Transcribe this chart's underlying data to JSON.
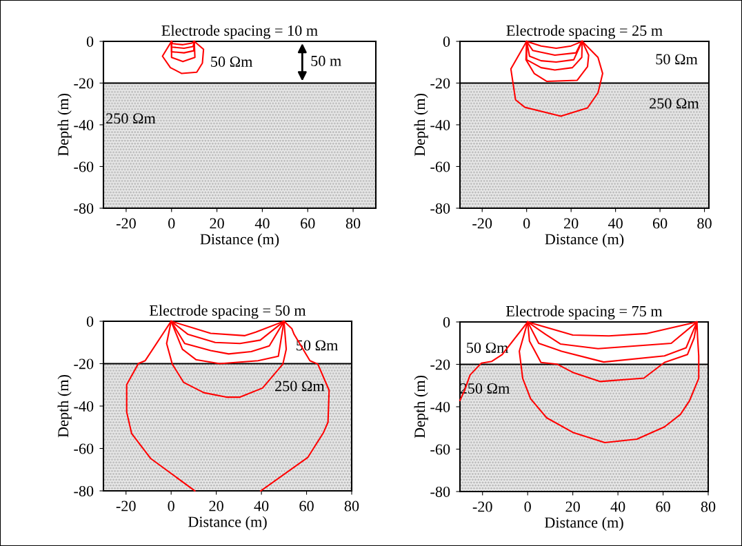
{
  "chart_data": [
    {
      "type": "line",
      "title": "Electrode spacing = 10 m",
      "xlabel": "Distance (m)",
      "ylabel": "Depth (m)",
      "xlim": [
        -30,
        90
      ],
      "ylim": [
        -80,
        0
      ],
      "xticks": [
        -20,
        0,
        20,
        40,
        60,
        80
      ],
      "yticks": [
        -80,
        -60,
        -40,
        -20,
        0
      ],
      "bands": [
        {
          "axis": "y",
          "from": -20,
          "to": -80,
          "color": "#bdbdbd"
        }
      ],
      "annotations": [
        "50 Ωm",
        "250 Ωm",
        "50 m"
      ],
      "series": [
        {
          "color": "#ff0000",
          "x": [
            0,
            0.5,
            5,
            9,
            10
          ],
          "values": [
            0,
            -1.1,
            -1.6,
            -0.8,
            0
          ]
        },
        {
          "color": "#ff0000",
          "x": [
            0,
            0,
            5.5,
            9.5,
            10
          ],
          "values": [
            0,
            -2.7,
            -3.3,
            -2.5,
            0
          ]
        },
        {
          "color": "#ff0000",
          "x": [
            0,
            0,
            5.5,
            9.8,
            10
          ],
          "values": [
            0,
            -5,
            -5.5,
            -4.5,
            0
          ]
        },
        {
          "color": "#ff0000",
          "x": [
            0,
            0,
            5,
            10.3,
            10
          ],
          "values": [
            0,
            -7.7,
            -9.7,
            -7.7,
            0
          ]
        },
        {
          "color": "#ff0000",
          "x": [
            0,
            -4,
            -0.5,
            4.5,
            11.1,
            13.6,
            14.1,
            10
          ],
          "values": [
            0,
            -7.1,
            -12.6,
            -15.4,
            -14.8,
            -10.4,
            -3.8,
            0
          ]
        }
      ]
    },
    {
      "type": "line",
      "title": "Electrode spacing = 25 m",
      "xlabel": "Distance (m)",
      "ylabel": "Depth (m)",
      "xlim": [
        -30,
        82
      ],
      "ylim": [
        -80,
        0
      ],
      "xticks": [
        -20,
        0,
        20,
        40,
        60,
        80
      ],
      "yticks": [
        -80,
        -60,
        -40,
        -20,
        0
      ],
      "bands": [
        {
          "axis": "y",
          "from": -20,
          "to": -80,
          "color": "#bdbdbd"
        }
      ],
      "annotations": [
        "50 Ωm",
        "250 Ωm"
      ],
      "series": [
        {
          "color": "#ff0000",
          "x": [
            0,
            6.5,
            13.3,
            20,
            25
          ],
          "values": [
            0,
            -2.2,
            -3.3,
            -2.2,
            0
          ]
        },
        {
          "color": "#ff0000",
          "x": [
            0,
            2.8,
            12.7,
            22.2,
            24.8
          ],
          "values": [
            0,
            -4.4,
            -6.6,
            -5.5,
            0
          ]
        },
        {
          "color": "#ff0000",
          "x": [
            0,
            1.3,
            6.5,
            13.3,
            21.2,
            25
          ],
          "values": [
            0,
            -7.1,
            -9.3,
            -9.9,
            -8.8,
            0
          ]
        },
        {
          "color": "#ff0000",
          "x": [
            0,
            0,
            6.5,
            12.7,
            20.6,
            24.8,
            25
          ],
          "values": [
            0,
            -8.8,
            -12.6,
            -13.7,
            -12.6,
            -7.7,
            0
          ]
        },
        {
          "color": "#ff0000",
          "x": [
            0,
            -0.3,
            3.4,
            9.1,
            22.7,
            27.4,
            27.9,
            25
          ],
          "values": [
            0,
            -8.8,
            -15.4,
            -19.2,
            -18.7,
            -12.1,
            -6.6,
            0
          ]
        },
        {
          "color": "#ff0000",
          "x": [
            0,
            -7.1,
            -5,
            -0.8,
            15.4,
            27.4,
            32.1,
            34.2,
            32.1,
            25
          ],
          "values": [
            0,
            -13.2,
            -28,
            -31.6,
            -35.9,
            -31.9,
            -24.7,
            -15.4,
            -7.7,
            0
          ]
        }
      ]
    },
    {
      "type": "line",
      "title": "Electrode spacing = 50 m",
      "xlabel": "Distance (m)",
      "ylabel": "Depth (m)",
      "xlim": [
        -30,
        80
      ],
      "ylim": [
        -80,
        0
      ],
      "xticks": [
        -20,
        0,
        20,
        40,
        60,
        80
      ],
      "yticks": [
        -80,
        -60,
        -40,
        -20,
        0
      ],
      "bands": [
        {
          "axis": "y",
          "from": -20,
          "to": -80,
          "color": "#bdbdbd"
        }
      ],
      "annotations": [
        "50 Ωm",
        "250 Ωm"
      ],
      "series": [
        {
          "color": "#ff0000",
          "x": [
            0,
            17.5,
            32.5,
            37.5,
            50
          ],
          "values": [
            0,
            -5.7,
            -6.8,
            -5.1,
            0
          ]
        },
        {
          "color": "#ff0000",
          "x": [
            0,
            7.5,
            19.5,
            30.5,
            39.5,
            50
          ],
          "values": [
            0,
            -6.2,
            -10,
            -10.5,
            -8.9,
            0
          ]
        },
        {
          "color": "#ff0000",
          "x": [
            0,
            6,
            17.5,
            25.5,
            35.5,
            43.5,
            50
          ],
          "values": [
            0,
            -10.5,
            -13.8,
            -15.4,
            -14.3,
            -11.6,
            0
          ]
        },
        {
          "color": "#ff0000",
          "x": [
            0,
            5,
            11,
            21.5,
            38.5,
            47.5,
            50
          ],
          "values": [
            0,
            -13.2,
            -18.1,
            -20,
            -18.6,
            -16.5,
            0
          ]
        },
        {
          "color": "#ff0000",
          "x": [
            0,
            -2,
            0.5,
            5.5,
            14.5,
            24.5,
            30.5,
            40.5,
            49.5,
            51,
            50
          ],
          "values": [
            0,
            -10.5,
            -20.2,
            -28.8,
            -33.7,
            -35.8,
            -35.8,
            -31.5,
            -20.2,
            -13.2,
            0
          ]
        },
        {
          "color": "#ff0000",
          "x": [
            0,
            -11.5,
            -14.5,
            -19.7,
            -19.7,
            -17.5,
            -9,
            10.5
          ],
          "values": [
            0,
            -18.6,
            -19.9,
            -29.9,
            -42.8,
            -53,
            -64.8,
            -80
          ]
        },
        {
          "color": "#ff0000",
          "x": [
            39.7,
            60.5,
            67.5,
            69.5,
            70,
            65,
            61.5,
            54.5,
            53.5,
            50
          ],
          "values": [
            -80,
            -64.3,
            -52.5,
            -47.6,
            -32.6,
            -20.2,
            -18.6,
            -6.2,
            -3.5,
            0
          ]
        }
      ]
    },
    {
      "type": "line",
      "title": "Electrode spacing = 75 m",
      "xlabel": "Distance (m)",
      "ylabel": "Depth (m)",
      "xlim": [
        -30,
        80
      ],
      "ylim": [
        -80,
        0
      ],
      "xticks": [
        -20,
        0,
        20,
        40,
        60,
        80
      ],
      "yticks": [
        -80,
        -60,
        -40,
        -20,
        0
      ],
      "bands": [
        {
          "axis": "y",
          "from": -20,
          "to": -80,
          "color": "#bdbdbd"
        }
      ],
      "annotations": [
        "50 Ωm",
        "250 Ωm"
      ],
      "series": [
        {
          "color": "#ff0000",
          "x": [
            0,
            20,
            36,
            52.5,
            75
          ],
          "values": [
            0,
            -6.2,
            -6.6,
            -5.5,
            0
          ]
        },
        {
          "color": "#ff0000",
          "x": [
            0,
            8,
            14.5,
            31.2,
            63.6,
            75
          ],
          "values": [
            0,
            -5.9,
            -10.4,
            -12.6,
            -10.1,
            0
          ]
        },
        {
          "color": "#ff0000",
          "x": [
            0,
            4.9,
            15,
            33.7,
            60.6,
            70.2,
            75
          ],
          "values": [
            0,
            -10.1,
            -13.8,
            -18.9,
            -16,
            -12.2,
            0
          ]
        },
        {
          "color": "#ff0000",
          "x": [
            0,
            0.8,
            5.9,
            13,
            20,
            32.2,
            51.5,
            60.6,
            70.8,
            73.8,
            75
          ],
          "values": [
            0,
            -9,
            -19.1,
            -19.9,
            -23.8,
            -28.1,
            -26.5,
            -19.1,
            -15.4,
            -7.4,
            0
          ]
        },
        {
          "color": "#ff0000",
          "x": [
            0,
            -3.7,
            -2.2,
            1.3,
            8.4,
            20,
            34.2,
            48.4,
            60.6,
            67.7,
            71.7,
            75.8,
            75.8,
            75.3,
            75
          ],
          "values": [
            0,
            -13.8,
            -26.6,
            -36.2,
            -45.2,
            -52.1,
            -56.9,
            -55.3,
            -49.5,
            -43.6,
            -37.2,
            -26.6,
            -16,
            -7.4,
            0
          ]
        },
        {
          "color": "#ff0000",
          "x": [
            0,
            -11.3,
            -15.9,
            -20.5,
            -25.5,
            -28,
            -30
          ],
          "values": [
            0,
            -15.4,
            -18.6,
            -19.4,
            -25,
            -32.4,
            -37
          ]
        }
      ]
    }
  ]
}
